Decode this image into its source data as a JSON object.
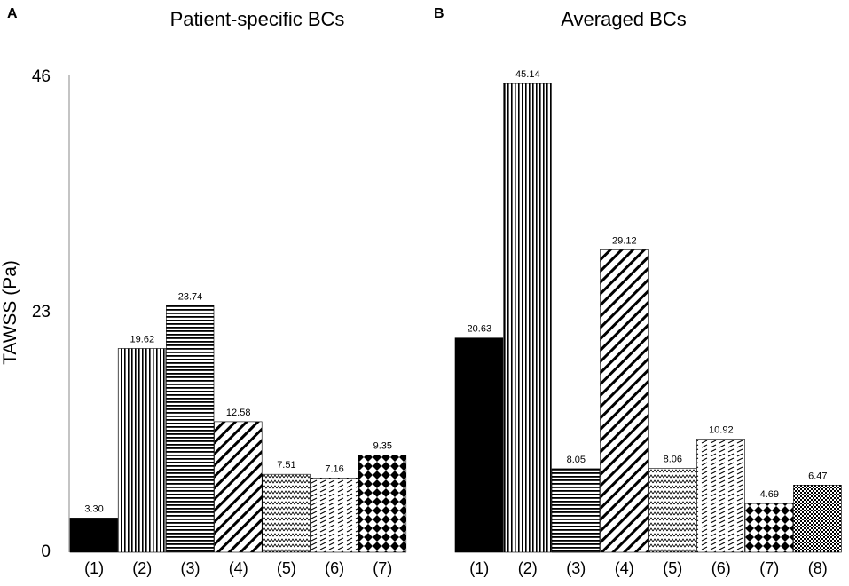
{
  "colors": {
    "ink": "#000000",
    "background": "#ffffff",
    "axis": "#888888"
  },
  "chart_data": [
    {
      "type": "bar",
      "panel": "A",
      "title": "Patient-specific BCs",
      "ylabel": "TAWSS (Pa)",
      "xlabel": "",
      "ylim": [
        0,
        46
      ],
      "yticks": [
        "0",
        "23",
        "46"
      ],
      "categories": [
        "(1)",
        "(2)",
        "(3)",
        "(4)",
        "(5)",
        "(6)",
        "(7)"
      ],
      "values": [
        3.3,
        19.62,
        23.74,
        12.58,
        7.51,
        7.16,
        9.35
      ],
      "value_labels": [
        "3.30",
        "19.62",
        "23.74",
        "12.58",
        "7.51",
        "7.16",
        "9.35"
      ],
      "patterns": [
        "solid",
        "vertical",
        "horizontal",
        "diagonal",
        "zigzag",
        "dashes",
        "diamond"
      ]
    },
    {
      "type": "bar",
      "panel": "B",
      "title": "Averaged BCs",
      "ylabel": "",
      "xlabel": "",
      "ylim": [
        0,
        46
      ],
      "categories": [
        "(1)",
        "(2)",
        "(3)",
        "(4)",
        "(5)",
        "(6)",
        "(7)",
        "(8)"
      ],
      "values": [
        20.63,
        45.14,
        8.05,
        29.12,
        8.06,
        10.92,
        4.69,
        6.47
      ],
      "value_labels": [
        "20.63",
        "45.14",
        "8.05",
        "29.12",
        "8.06",
        "10.92",
        "4.69",
        "6.47"
      ],
      "patterns": [
        "solid",
        "vertical",
        "horizontal",
        "diagonal",
        "zigzag",
        "dashes",
        "diamond",
        "checker"
      ]
    }
  ]
}
